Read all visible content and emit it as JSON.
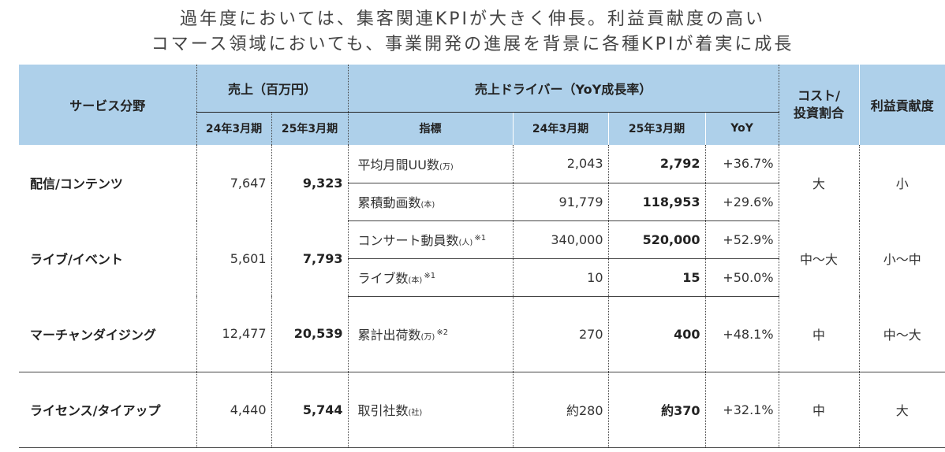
{
  "headline": {
    "line1": "過年度においては、集客関連KPIが大きく伸長。利益貢献度の高い",
    "line2": "コマース領域においても、事業開発の進展を背景に各種KPIが着実に成長"
  },
  "table": {
    "headers": {
      "service": "サービス分野",
      "sales": "売上（百万円）",
      "driver": "売上ドライバー（YoY成長率）",
      "cost": "コスト/\n投資割合",
      "profit": "利益貢献度",
      "fy24": "24年3月期",
      "fy25": "25年3月期",
      "indicator": "指標",
      "d_fy24": "24年3月期",
      "d_fy25": "25年3月期",
      "yoy": "YoY"
    },
    "groups": [
      {
        "service": "配信/コンテンツ",
        "sales24": "7,647",
        "sales25": "9,323",
        "cost": "大",
        "profit": "小",
        "drivers": [
          {
            "indicator": "平均月間UU数",
            "unit": "(万)",
            "note": "",
            "v24": "2,043",
            "v25": "2,792",
            "yoy": "+36.7%"
          },
          {
            "indicator": "累積動画数",
            "unit": "(本)",
            "note": "",
            "v24": "91,779",
            "v25": "118,953",
            "yoy": "+29.6%"
          }
        ]
      },
      {
        "service": "ライブ/イベント",
        "sales24": "5,601",
        "sales25": "7,793",
        "cost": "中〜大",
        "profit": "小〜中",
        "drivers": [
          {
            "indicator": "コンサート動員数",
            "unit": "(人)",
            "note": "※1",
            "v24": "340,000",
            "v25": "520,000",
            "yoy": "+52.9%"
          },
          {
            "indicator": "ライブ数",
            "unit": "(本)",
            "note": "※1",
            "v24": "10",
            "v25": "15",
            "yoy": "+50.0%"
          }
        ]
      },
      {
        "service": "マーチャンダイジング",
        "sales24": "12,477",
        "sales25": "20,539",
        "cost": "中",
        "profit": "中〜大",
        "drivers": [
          {
            "indicator": "累計出荷数",
            "unit": "(万)",
            "note": "※2",
            "v24": "270",
            "v25": "400",
            "yoy": "+48.1%"
          }
        ]
      },
      {
        "service": "ライセンス/タイアップ",
        "sales24": "4,440",
        "sales25": "5,744",
        "cost": "中",
        "profit": "大",
        "drivers": [
          {
            "indicator": "取引社数",
            "unit": "(社)",
            "note": "",
            "v24": "約280",
            "v25": "約370",
            "yoy": "+32.1%"
          }
        ]
      }
    ]
  }
}
